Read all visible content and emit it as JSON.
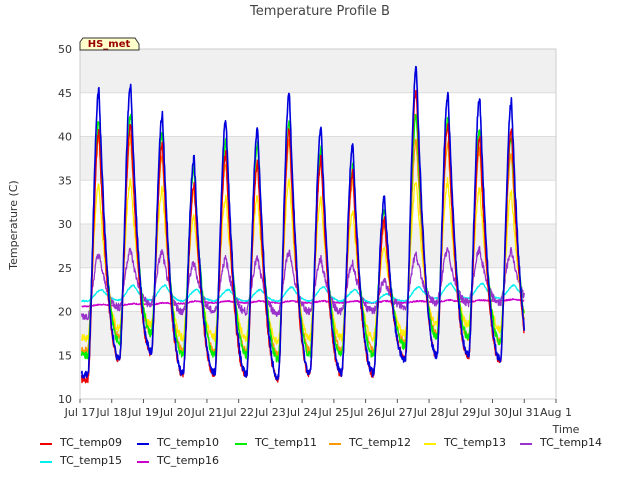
{
  "chart_data": {
    "type": "line",
    "title": "Temperature Profile B",
    "xlabel": "Time",
    "ylabel": "Temperature (C)",
    "ylim": [
      10,
      50
    ],
    "xlim": [
      "2023-07-17",
      "2023-08-01"
    ],
    "yticks": [
      10,
      15,
      20,
      25,
      30,
      35,
      40,
      45,
      50
    ],
    "xticks": [
      "Jul 17",
      "Jul 18",
      "Jul 19",
      "Jul 20",
      "Jul 21",
      "Jul 22",
      "Jul 23",
      "Jul 24",
      "Jul 25",
      "Jul 26",
      "Jul 27",
      "Jul 28",
      "Jul 29",
      "Jul 30",
      "Jul 31",
      "Aug 1"
    ],
    "grid": true,
    "banded_background": true,
    "annotation": "HS_met",
    "legend_position": "bottom",
    "days": [
      "Jul 17",
      "Jul 18",
      "Jul 19",
      "Jul 20",
      "Jul 21",
      "Jul 22",
      "Jul 23",
      "Jul 24",
      "Jul 25",
      "Jul 26",
      "Jul 27",
      "Jul 28",
      "Jul 29",
      "Jul 30"
    ],
    "series": [
      {
        "name": "TC_temp10",
        "color": "#0000dd",
        "daily_max": [
          45.2,
          46.0,
          42.5,
          37.5,
          42.0,
          41.0,
          45.0,
          41.0,
          39.0,
          33.0,
          48.0,
          45.0,
          44.5,
          44.0
        ],
        "daily_min": [
          12.8,
          14.5,
          15.5,
          13.0,
          13.0,
          12.8,
          12.5,
          13.0,
          13.0,
          13.0,
          14.5,
          15.0,
          15.0,
          14.5
        ]
      },
      {
        "name": "TC_temp09",
        "color": "#ee0000",
        "daily_max": [
          40.5,
          41.5,
          39.0,
          34.5,
          38.0,
          37.0,
          41.0,
          37.5,
          36.0,
          30.5,
          45.5,
          41.5,
          40.0,
          41.0
        ],
        "daily_min": [
          12.3,
          14.5,
          15.3,
          12.8,
          12.8,
          12.5,
          12.3,
          12.8,
          12.8,
          12.8,
          14.8,
          15.0,
          14.8,
          14.3
        ]
      },
      {
        "name": "TC_temp11",
        "color": "#00ee00",
        "daily_max": [
          42.0,
          42.5,
          40.5,
          36.5,
          39.5,
          39.0,
          41.5,
          38.5,
          36.5,
          31.5,
          42.5,
          42.0,
          41.0,
          40.0
        ],
        "daily_min": [
          15.0,
          16.5,
          17.5,
          15.0,
          15.0,
          15.0,
          14.5,
          15.0,
          15.0,
          15.0,
          16.0,
          17.0,
          17.0,
          16.5
        ]
      },
      {
        "name": "TC_temp12",
        "color": "#ff9900",
        "daily_max": [
          40.0,
          40.0,
          38.0,
          34.0,
          37.0,
          37.0,
          39.5,
          37.0,
          35.0,
          30.0,
          39.5,
          39.5,
          38.5,
          38.0
        ],
        "daily_min": [
          15.5,
          17.0,
          17.5,
          15.5,
          15.5,
          15.5,
          15.0,
          15.5,
          15.5,
          15.5,
          16.5,
          17.5,
          17.0,
          16.5
        ]
      },
      {
        "name": "TC_temp13",
        "color": "#ffee00",
        "daily_max": [
          34.5,
          35.0,
          34.0,
          31.0,
          33.0,
          33.0,
          35.0,
          33.0,
          31.5,
          27.5,
          35.0,
          35.0,
          34.0,
          33.5
        ],
        "daily_min": [
          17.0,
          18.0,
          18.5,
          17.0,
          17.0,
          17.0,
          16.5,
          17.0,
          17.0,
          17.0,
          17.5,
          18.5,
          18.5,
          18.0
        ]
      },
      {
        "name": "TC_temp14",
        "color": "#9933cc",
        "daily_max": [
          26.5,
          27.0,
          26.8,
          25.5,
          26.0,
          26.0,
          26.8,
          26.0,
          25.5,
          23.5,
          26.5,
          27.0,
          27.0,
          27.0
        ],
        "daily_min": [
          19.5,
          20.5,
          20.8,
          20.0,
          20.0,
          20.0,
          19.8,
          20.0,
          20.0,
          20.0,
          20.5,
          21.0,
          21.0,
          21.0
        ]
      },
      {
        "name": "TC_temp15",
        "color": "#00eeee",
        "daily_max": [
          22.5,
          23.0,
          23.0,
          22.5,
          22.5,
          22.5,
          22.8,
          22.8,
          22.5,
          22.0,
          22.8,
          23.2,
          23.2,
          23.0
        ],
        "daily_min": [
          21.2,
          21.3,
          21.3,
          21.2,
          21.2,
          21.2,
          21.2,
          21.2,
          21.2,
          21.0,
          21.2,
          21.5,
          21.5,
          21.5
        ]
      },
      {
        "name": "TC_temp16",
        "color": "#cc00cc",
        "daily_max": [
          20.8,
          20.9,
          21.0,
          21.2,
          21.2,
          21.2,
          21.2,
          21.2,
          21.2,
          21.2,
          21.2,
          21.3,
          21.3,
          21.4
        ],
        "daily_min": [
          20.6,
          20.7,
          20.8,
          20.9,
          21.0,
          21.0,
          21.0,
          21.0,
          21.0,
          21.0,
          21.0,
          21.1,
          21.1,
          21.2
        ]
      }
    ],
    "legend_order": [
      "TC_temp09",
      "TC_temp10",
      "TC_temp11",
      "TC_temp12",
      "TC_temp13",
      "TC_temp14",
      "TC_temp15",
      "TC_temp16"
    ]
  }
}
